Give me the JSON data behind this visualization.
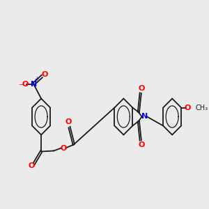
{
  "background_color": "#ebebeb",
  "bond_color": "#1a1a1a",
  "atom_colors": {
    "O": "#ff0000",
    "N": "#0000ee",
    "C": "#1a1a1a"
  },
  "fig_width": 3.0,
  "fig_height": 3.0,
  "dpi": 100,
  "lw": 1.3,
  "fs": 7.5,
  "r_hex": 0.52
}
